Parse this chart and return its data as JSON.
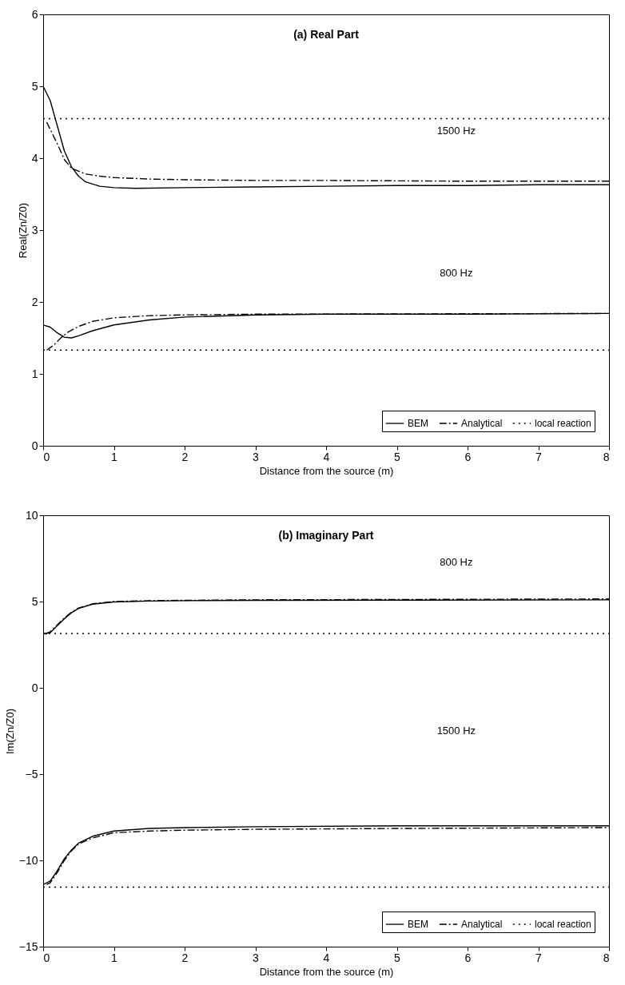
{
  "chart_data": [
    {
      "type": "line",
      "title": "(a) Real Part",
      "xlabel": "Distance from the source (m)",
      "ylabel": "Real(Zn/Z0)",
      "xlim": [
        0,
        8
      ],
      "xticks": [
        0,
        1,
        2,
        3,
        4,
        5,
        6,
        7,
        8
      ],
      "ylim": [
        0,
        6
      ],
      "yticks": [
        0,
        1,
        2,
        3,
        4,
        5,
        6
      ],
      "legend": "bottom right",
      "grid": false,
      "annotations": [
        "1500 Hz",
        "800 Hz"
      ],
      "series": [
        {
          "name": "BEM",
          "color": "#000000",
          "line_style": "solid",
          "x": [
            0,
            0.1,
            0.2,
            0.3,
            0.4,
            0.5,
            0.6,
            0.8,
            1.0,
            1.3,
            2,
            3,
            4,
            5,
            6,
            7,
            8
          ],
          "values": [
            5.0,
            4.8,
            4.45,
            4.1,
            3.88,
            3.75,
            3.67,
            3.61,
            3.59,
            3.58,
            3.59,
            3.6,
            3.61,
            3.62,
            3.62,
            3.63,
            3.63
          ]
        },
        {
          "name": "Analytical",
          "color": "#000000",
          "line_style": "dashdot",
          "x": [
            0.05,
            0.1,
            0.2,
            0.3,
            0.4,
            0.6,
            0.8,
            1.0,
            1.5,
            2,
            3,
            4,
            6,
            8
          ],
          "values": [
            4.5,
            4.4,
            4.2,
            3.98,
            3.86,
            3.78,
            3.75,
            3.73,
            3.71,
            3.7,
            3.69,
            3.69,
            3.68,
            3.68
          ]
        },
        {
          "name": "local reaction",
          "color": "#000000",
          "line_style": "dotted",
          "x": [
            0,
            8
          ],
          "values": [
            4.55,
            4.55
          ]
        },
        {
          "name": "BEM",
          "color": "#000000",
          "line_style": "solid",
          "x": [
            0,
            0.1,
            0.2,
            0.3,
            0.4,
            0.5,
            0.7,
            1.0,
            1.5,
            2,
            3,
            4,
            6,
            8
          ],
          "values": [
            1.68,
            1.65,
            1.57,
            1.51,
            1.5,
            1.53,
            1.6,
            1.68,
            1.75,
            1.79,
            1.82,
            1.83,
            1.83,
            1.84
          ]
        },
        {
          "name": "Analytical",
          "color": "#000000",
          "line_style": "dashdot",
          "x": [
            0.05,
            0.15,
            0.25,
            0.35,
            0.5,
            0.7,
            1.0,
            1.5,
            2,
            3,
            8
          ],
          "values": [
            1.33,
            1.4,
            1.5,
            1.58,
            1.66,
            1.73,
            1.78,
            1.81,
            1.82,
            1.83,
            1.84
          ]
        },
        {
          "name": "local reaction",
          "color": "#000000",
          "line_style": "dotted",
          "x": [
            0,
            8
          ],
          "values": [
            1.33,
            1.33
          ]
        }
      ]
    },
    {
      "type": "line",
      "title": "(b) Imaginary Part",
      "xlabel": "Distance from the source (m)",
      "ylabel": "Im(Zn/Z0)",
      "xlim": [
        0,
        8
      ],
      "xticks": [
        0,
        1,
        2,
        3,
        4,
        5,
        6,
        7,
        8
      ],
      "ylim": [
        -15,
        10
      ],
      "yticks": [
        -15,
        -10,
        -5,
        0,
        5,
        10
      ],
      "legend": "bottom right",
      "grid": false,
      "annotations": [
        "800 Hz",
        "1500 Hz"
      ],
      "series": [
        {
          "name": "BEM",
          "color": "#000000",
          "line_style": "solid",
          "x": [
            0,
            0.1,
            0.2,
            0.3,
            0.4,
            0.5,
            0.7,
            1.0,
            1.5,
            2,
            3,
            5,
            8
          ],
          "values": [
            3.15,
            3.2,
            3.6,
            4.0,
            4.35,
            4.6,
            4.85,
            4.98,
            5.03,
            5.05,
            5.07,
            5.08,
            5.1
          ]
        },
        {
          "name": "Analytical",
          "color": "#000000",
          "line_style": "dashdot",
          "x": [
            0.03,
            0.1,
            0.2,
            0.3,
            0.4,
            0.5,
            0.7,
            1.0,
            1.5,
            2,
            3,
            5,
            8
          ],
          "values": [
            3.1,
            3.25,
            3.65,
            4.05,
            4.38,
            4.62,
            4.87,
            5.0,
            5.05,
            5.07,
            5.1,
            5.12,
            5.15
          ]
        },
        {
          "name": "local reaction",
          "color": "#000000",
          "line_style": "dotted",
          "x": [
            0,
            8
          ],
          "values": [
            3.15,
            3.15
          ]
        },
        {
          "name": "BEM",
          "color": "#000000",
          "line_style": "solid",
          "x": [
            0,
            0.1,
            0.2,
            0.3,
            0.4,
            0.5,
            0.7,
            1.0,
            1.5,
            2,
            3,
            5,
            8
          ],
          "values": [
            -11.4,
            -11.2,
            -10.6,
            -9.9,
            -9.4,
            -9.0,
            -8.6,
            -8.3,
            -8.15,
            -8.1,
            -8.05,
            -8.0,
            -8.0
          ]
        },
        {
          "name": "Analytical",
          "color": "#000000",
          "line_style": "dashdot",
          "x": [
            0.05,
            0.1,
            0.2,
            0.3,
            0.4,
            0.5,
            0.7,
            1.0,
            1.5,
            2,
            3,
            5,
            8
          ],
          "values": [
            -11.4,
            -11.3,
            -10.7,
            -10.0,
            -9.45,
            -9.05,
            -8.7,
            -8.4,
            -8.3,
            -8.25,
            -8.2,
            -8.15,
            -8.1
          ]
        },
        {
          "name": "local reaction",
          "color": "#000000",
          "line_style": "dotted",
          "x": [
            0,
            8
          ],
          "values": [
            -11.55,
            -11.55
          ]
        }
      ]
    }
  ]
}
